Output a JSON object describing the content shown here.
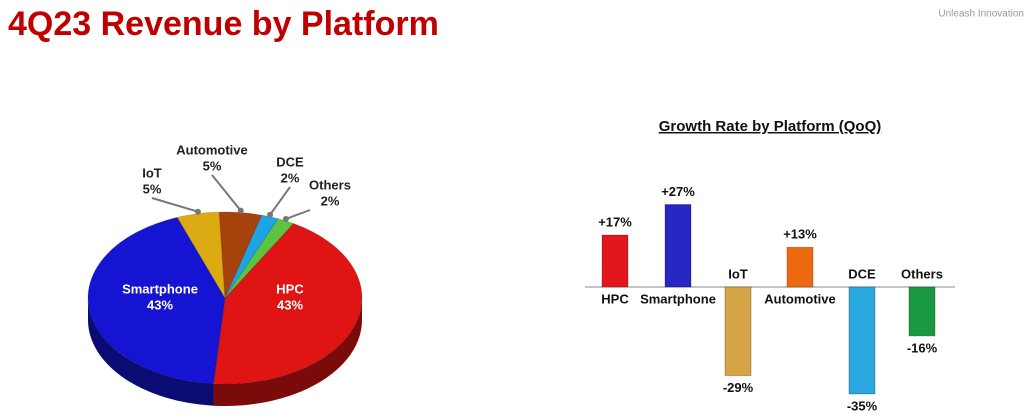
{
  "title": "4Q23 Revenue by Platform",
  "tagline": "Unleash Innovation",
  "chart_data": [
    {
      "type": "pie",
      "categories": [
        "HPC",
        "Smartphone",
        "IoT",
        "Automotive",
        "DCE",
        "Others"
      ],
      "values": [
        43,
        43,
        5,
        5,
        2,
        2
      ],
      "value_labels": [
        "43%",
        "43%",
        "5%",
        "5%",
        "2%",
        "2%"
      ],
      "colors": [
        "#e01414",
        "#1414d2",
        "#dcaa12",
        "#a8420c",
        "#1ea4e6",
        "#5cc440"
      ]
    },
    {
      "type": "bar",
      "title": "Growth Rate by Platform (QoQ)",
      "categories": [
        "HPC",
        "Smartphone",
        "IoT",
        "Automotive",
        "DCE",
        "Others"
      ],
      "values": [
        17,
        27,
        -29,
        13,
        -35,
        -16
      ],
      "value_labels": [
        "+17%",
        "+27%",
        "-29%",
        "+13%",
        "-35%",
        "-16%"
      ],
      "colors": [
        "#e3171b",
        "#2626c4",
        "#d4a447",
        "#ee6a10",
        "#2aa8e0",
        "#1a9a40"
      ]
    }
  ]
}
